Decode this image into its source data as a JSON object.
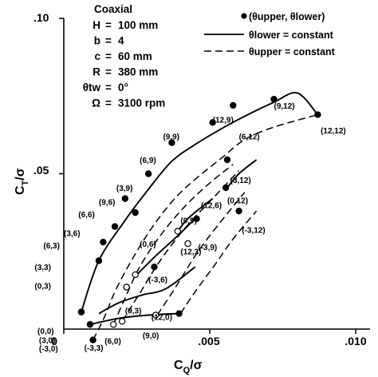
{
  "chart_data": {
    "type": "line",
    "title": "",
    "xlabel": "C_Q/σ",
    "ylabel": "C_T/σ",
    "xlim": [
      0,
      0.01
    ],
    "ylim": [
      0,
      0.1
    ],
    "xticks": [
      {
        "value": 0,
        "label": "0"
      },
      {
        "value": 0.005,
        "label": ".005"
      },
      {
        "value": 0.01,
        "label": ".010"
      }
    ],
    "yticks": [
      {
        "value": 0.05,
        "label": ".05"
      },
      {
        "value": 0.1,
        "label": ".10"
      }
    ],
    "grid": false,
    "params_title": "Coaxial",
    "params": [
      {
        "name": "H",
        "value": "100 mm"
      },
      {
        "name": "b",
        "value": "4"
      },
      {
        "name": "c",
        "value": "60 mm"
      },
      {
        "name": "R",
        "value": "380 mm"
      },
      {
        "name": "θtw",
        "value": "0°"
      },
      {
        "name": "Ω",
        "value": "3100 rpm"
      }
    ],
    "legend": {
      "placement": "top-right",
      "entries": [
        {
          "marker": "dot",
          "label": "(θupper, θlower)"
        },
        {
          "marker": "solid-line",
          "label": "θlower = constant"
        },
        {
          "marker": "dashed-line",
          "label": "θupper = constant"
        }
      ]
    },
    "points": [
      {
        "label": "(0,0)",
        "x": 0.0009,
        "y": 0.0015,
        "filled": true,
        "lx": -0.0009,
        "ly": -0.0015
      },
      {
        "label": "(3,0)",
        "x": 0.0009,
        "y": 0.0015,
        "filled": true,
        "lx": -0.00085,
        "ly": -0.0045
      },
      {
        "label": "(-3,0)",
        "x": 0.001,
        "y": -0.0035,
        "filled": true,
        "lx": -0.00085,
        "ly": -0.0072
      },
      {
        "label": "(-3,3)",
        "x": 0.0017,
        "y": 0.0015,
        "filled": false,
        "lx": 0.0007,
        "ly": -0.007
      },
      {
        "label": "(6,0)",
        "x": 0.002,
        "y": 0.0025,
        "filled": false,
        "lx": 0.0014,
        "ly": -0.0048
      },
      {
        "label": "(9,0)",
        "x": 0.00315,
        "y": 0.0045,
        "filled": false,
        "lx": 0.0027,
        "ly": -0.003
      },
      {
        "label": "(12,0)",
        "x": 0.00395,
        "y": 0.005,
        "filled": true,
        "lx": 0.003,
        "ly": 0.003
      },
      {
        "label": "(0,3)",
        "x": 0.0006,
        "y": 0.0055,
        "filled": true,
        "lx": -0.001,
        "ly": 0.013
      },
      {
        "label": "(3,3)",
        "x": 0.0006,
        "y": 0.0055,
        "filled": true,
        "lx": -0.001,
        "ly": 0.019
      },
      {
        "label": "(6,3)",
        "x": 0.0012,
        "y": 0.022,
        "filled": true,
        "lx": -0.0007,
        "ly": 0.026
      },
      {
        "label": "(-3,6)",
        "x": 0.00215,
        "y": 0.0135,
        "filled": false,
        "lx": 0.0029,
        "ly": 0.015
      },
      {
        "label": "(9,3)",
        "x": 0.00215,
        "y": 0.0135,
        "filled": false,
        "lx": 0.0021,
        "ly": 0.005
      },
      {
        "label": "(12,3)",
        "x": 0.0031,
        "y": 0.02,
        "filled": true,
        "lx": 0.004,
        "ly": 0.024
      },
      {
        "label": "(0,6)",
        "x": 0.00245,
        "y": 0.0175,
        "filled": false,
        "lx": 0.0026,
        "ly": 0.0265
      },
      {
        "label": "(3,6)",
        "x": 0.00135,
        "y": 0.028,
        "filled": true,
        "lx": 0.0,
        "ly": 0.03
      },
      {
        "label": "(6,6)",
        "x": 0.00175,
        "y": 0.033,
        "filled": true,
        "lx": 0.0005,
        "ly": 0.036
      },
      {
        "label": "(9,6)",
        "x": 0.00245,
        "y": 0.0375,
        "filled": true,
        "lx": 0.0012,
        "ly": 0.04
      },
      {
        "label": "(3,9)",
        "x": 0.0021,
        "y": 0.042,
        "filled": true,
        "lx": 0.0018,
        "ly": 0.0445
      },
      {
        "label": "(12,6)",
        "x": 0.00455,
        "y": 0.0355,
        "filled": true,
        "lx": 0.0047,
        "ly": 0.039
      },
      {
        "label": "(0,9)",
        "x": 0.0039,
        "y": 0.0315,
        "filled": false,
        "lx": 0.004,
        "ly": 0.034
      },
      {
        "label": "(-3,9)",
        "x": 0.00425,
        "y": 0.0275,
        "filled": false,
        "lx": 0.0046,
        "ly": 0.0255
      },
      {
        "label": "(6,9)",
        "x": 0.0029,
        "y": 0.05,
        "filled": true,
        "lx": 0.0026,
        "ly": 0.0535
      },
      {
        "label": "(9,9)",
        "x": 0.0037,
        "y": 0.06,
        "filled": true,
        "lx": 0.0034,
        "ly": 0.061
      },
      {
        "label": "(12,9)",
        "x": 0.0051,
        "y": 0.0665,
        "filled": true,
        "lx": 0.0051,
        "ly": 0.0665
      },
      {
        "label": "(6,12)",
        "x": 0.0058,
        "y": 0.072,
        "filled": true,
        "lx": 0.006,
        "ly": 0.061
      },
      {
        "label": "(3,12)",
        "x": 0.0056,
        "y": 0.0545,
        "filled": true,
        "lx": 0.0057,
        "ly": 0.047
      },
      {
        "label": "(0,12)",
        "x": 0.00555,
        "y": 0.0455,
        "filled": true,
        "lx": 0.0056,
        "ly": 0.0405
      },
      {
        "label": "(-3,12)",
        "x": 0.006,
        "y": 0.038,
        "filled": true,
        "lx": 0.0061,
        "ly": 0.031
      },
      {
        "label": "(9,12)",
        "x": 0.0072,
        "y": 0.074,
        "filled": true,
        "lx": 0.0072,
        "ly": 0.071
      },
      {
        "label": "(12,12)",
        "x": 0.0087,
        "y": 0.069,
        "filled": true,
        "lx": 0.0088,
        "ly": 0.063
      }
    ],
    "series": [
      {
        "style": "solid",
        "x": [
          0.0006,
          0.0012,
          0.0021,
          0.0029,
          0.0037,
          0.0046,
          0.0055,
          0.0063,
          0.0072,
          0.008,
          0.0087
        ],
        "y": [
          0.0055,
          0.022,
          0.035,
          0.045,
          0.054,
          0.06,
          0.065,
          0.069,
          0.073,
          0.076,
          0.069
        ]
      },
      {
        "style": "solid",
        "x": [
          0.0009,
          0.0019,
          0.0029,
          0.0039
        ],
        "y": [
          0.0015,
          0.0035,
          0.0045,
          0.005
        ]
      },
      {
        "style": "solid",
        "x": [
          0.0012,
          0.0019,
          0.0027,
          0.0035,
          0.0045
        ],
        "y": [
          0.005,
          0.0085,
          0.011,
          0.013,
          0.02
        ]
      },
      {
        "style": "solid",
        "x": [
          0.0025,
          0.0032,
          0.0039,
          0.0045
        ],
        "y": [
          0.0175,
          0.024,
          0.03,
          0.0355
        ]
      },
      {
        "style": "solid",
        "x": [
          0.0039,
          0.0043,
          0.0051
        ],
        "y": [
          0.0315,
          0.036,
          0.042
        ]
      },
      {
        "style": "solid",
        "x": [
          0.0056,
          0.006,
          0.0066
        ],
        "y": [
          0.0455,
          0.05,
          0.0545
        ]
      },
      {
        "style": "dashed",
        "x": [
          0.001,
          0.0014,
          0.0018,
          0.0025,
          0.0032,
          0.0039,
          0.0046,
          0.0054,
          0.0062,
          0.0072,
          0.0087
        ],
        "y": [
          -0.0035,
          0.004,
          0.013,
          0.025,
          0.035,
          0.043,
          0.049,
          0.055,
          0.061,
          0.065,
          0.069
        ]
      },
      {
        "style": "dashed",
        "x": [
          0.0017,
          0.0021,
          0.0026,
          0.0033,
          0.0041,
          0.005,
          0.0058
        ],
        "y": [
          0.0015,
          0.01,
          0.02,
          0.03,
          0.039,
          0.047,
          0.053
        ]
      },
      {
        "style": "dashed",
        "x": [
          0.002,
          0.0026,
          0.0033,
          0.0042,
          0.0052,
          0.006
        ],
        "y": [
          0.0025,
          0.0115,
          0.022,
          0.033,
          0.043,
          0.051
        ]
      },
      {
        "style": "dashed",
        "x": [
          0.0032,
          0.0038,
          0.0046,
          0.0055,
          0.0062
        ],
        "y": [
          0.0045,
          0.013,
          0.025,
          0.036,
          0.044
        ]
      },
      {
        "style": "dashed",
        "x": [
          0.004,
          0.0045,
          0.0052,
          0.0058,
          0.0066
        ],
        "y": [
          0.005,
          0.012,
          0.021,
          0.029,
          0.038
        ]
      }
    ]
  }
}
